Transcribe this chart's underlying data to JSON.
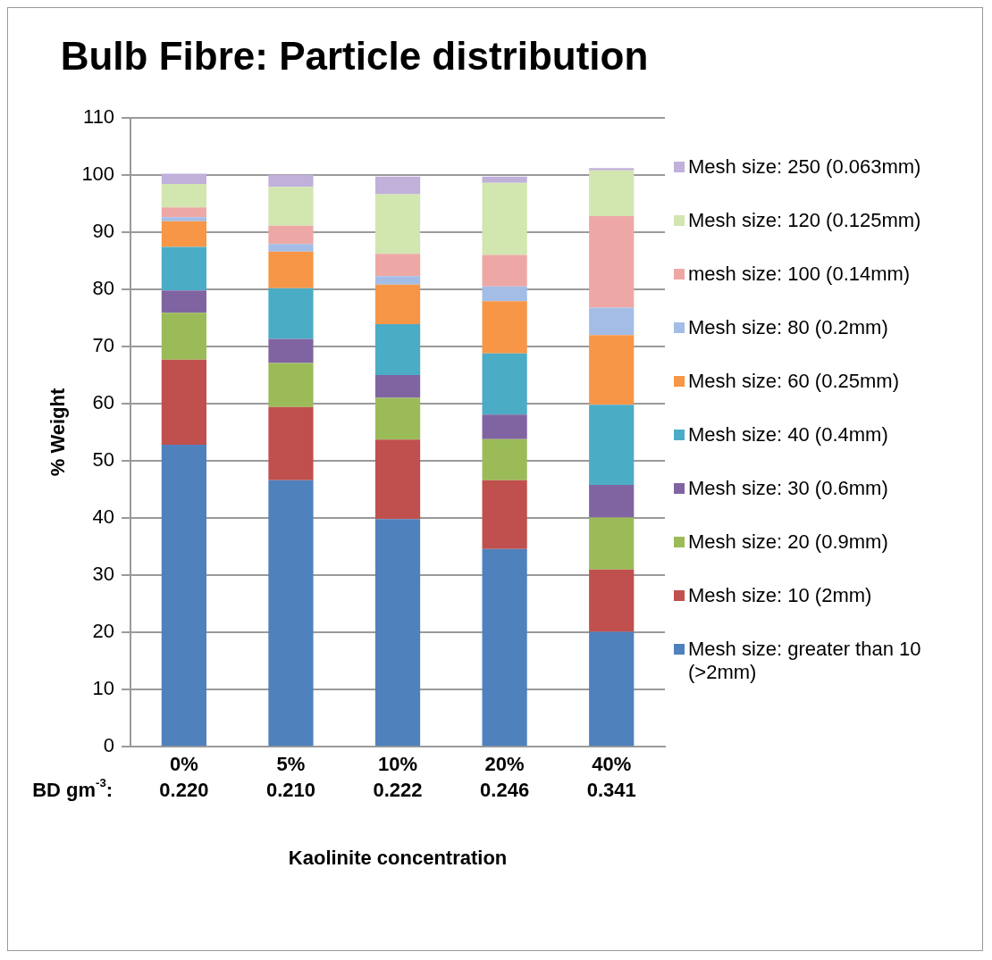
{
  "chart_data": {
    "type": "bar",
    "stacked": true,
    "title": "Bulb Fibre: Particle distribution",
    "xlabel": "Kaolinite concentration",
    "ylabel": "% Weight",
    "categories": [
      "0%",
      "5%",
      "10%",
      "20%",
      "40%"
    ],
    "series": [
      {
        "name": "Mesh size: greater than 10 (>2mm)",
        "color": "#4f81bd",
        "values": [
          52.8,
          46.6,
          39.8,
          34.6,
          20.1
        ]
      },
      {
        "name": "Mesh size: 10 (2mm)",
        "color": "#c0504d",
        "values": [
          14.9,
          12.8,
          13.9,
          12.0,
          10.9
        ]
      },
      {
        "name": "Mesh size: 20 (0.9mm)",
        "color": "#9bbb59",
        "values": [
          8.2,
          7.7,
          7.3,
          7.2,
          9.1
        ]
      },
      {
        "name": "Mesh size: 30 (0.6mm)",
        "color": "#8064a2",
        "values": [
          3.9,
          4.2,
          4.0,
          4.3,
          5.7
        ]
      },
      {
        "name": "Mesh size: 40 (0.4mm)",
        "color": "#4bacc6",
        "values": [
          7.6,
          8.9,
          8.9,
          10.7,
          14.0
        ]
      },
      {
        "name": "Mesh size: 60 (0.25mm)",
        "color": "#f79646",
        "values": [
          4.5,
          6.4,
          6.9,
          9.1,
          12.2
        ]
      },
      {
        "name": "Mesh size: 80 (0.2mm)",
        "color": "#a3bde6",
        "values": [
          0.7,
          1.3,
          1.5,
          2.6,
          4.8
        ]
      },
      {
        "name": "mesh size: 100 (0.14mm)",
        "color": "#eda8a6",
        "values": [
          1.7,
          3.2,
          3.9,
          5.5,
          16.0
        ]
      },
      {
        "name": "Mesh size: 120 (0.125mm)",
        "color": "#d2e6b0",
        "values": [
          4.1,
          6.8,
          10.4,
          12.6,
          8.0
        ]
      },
      {
        "name": "Mesh size: 250 (0.063mm)",
        "color": "#c0b0da",
        "values": [
          1.8,
          2.1,
          3.1,
          1.1,
          0.4
        ]
      }
    ],
    "ylim": [
      0,
      110
    ],
    "yticks": [
      0,
      10,
      20,
      30,
      40,
      50,
      60,
      70,
      80,
      90,
      100,
      110
    ],
    "grid": "y",
    "legend": "right",
    "annotations": [
      "BD gm$^{-3}$:",
      "0.220",
      "0.210",
      "0.222",
      "0.246",
      "0.341"
    ]
  }
}
